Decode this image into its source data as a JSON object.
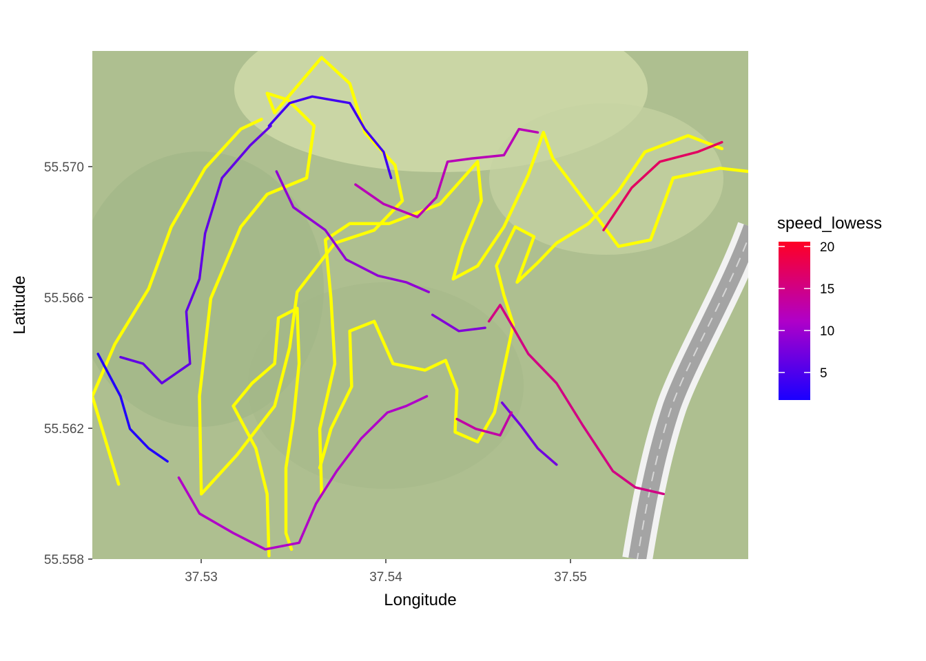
{
  "map": {
    "base_layer": "terrain-satellite-tiles",
    "features": [
      "green-parkland",
      "grey-highway-curve"
    ],
    "colors": {
      "land": "#a9bd8f",
      "land_light": "#ccd8a6",
      "road": "#a2a2a2",
      "road_edge": "#f0f0f0",
      "route_highlight": "#ffff00"
    }
  },
  "axes": {
    "xlabel": "Longitude",
    "ylabel": "Latitude",
    "x_ticks": [
      "37.53",
      "37.54",
      "37.55"
    ],
    "y_ticks": [
      "55.558",
      "55.562",
      "55.566",
      "55.570"
    ]
  },
  "legend": {
    "title": "speed_lowess",
    "labels": [
      "20",
      "15",
      "10",
      "5"
    ],
    "gradient_low": "#1a00ff",
    "gradient_mid": "#b000c8",
    "gradient_high": "#ff0024"
  },
  "chart_data": {
    "type": "scatter",
    "title": "",
    "xlabel": "Longitude",
    "ylabel": "Latitude",
    "xlim": [
      37.5243,
      37.5592
    ],
    "ylim": [
      55.558,
      55.5736
    ],
    "x_ticks": [
      37.53,
      37.54,
      37.55
    ],
    "y_ticks": [
      55.558,
      55.562,
      55.566,
      55.57
    ],
    "grid": false,
    "legend_position": "right",
    "color_scale": {
      "name": "speed_lowess",
      "min": 1.5,
      "max": 20.5,
      "ticks": [
        5,
        10,
        15,
        20
      ],
      "colors": [
        "#1a00ff",
        "#b000c8",
        "#ff0024"
      ]
    },
    "highlight_tracks": [
      {
        "color": "#ffff00",
        "points": [
          [
            37.534,
            55.5717
          ],
          [
            37.5365,
            55.5734
          ],
          [
            37.538,
            55.5726
          ],
          [
            37.5388,
            55.5711
          ],
          [
            37.5404,
            55.5701
          ],
          [
            37.5408,
            55.569
          ],
          [
            37.5393,
            55.5681
          ],
          [
            37.5372,
            55.5677
          ],
          [
            37.5352,
            55.5662
          ],
          [
            37.5348,
            55.5645
          ],
          [
            37.534,
            55.5627
          ],
          [
            37.532,
            55.5612
          ],
          [
            37.5301,
            55.56
          ],
          [
            37.53,
            55.563
          ],
          [
            37.5306,
            55.566
          ],
          [
            37.5322,
            55.5682
          ],
          [
            37.5336,
            55.5692
          ],
          [
            37.5357,
            55.5697
          ],
          [
            37.5361,
            55.5713
          ],
          [
            37.5347,
            55.5721
          ],
          [
            37.5336,
            55.5723
          ],
          [
            37.534,
            55.5717
          ]
        ]
      },
      {
        "color": "#ffff00",
        "points": [
          [
            37.5257,
            55.5603
          ],
          [
            37.5243,
            55.563
          ],
          [
            37.5255,
            55.5646
          ],
          [
            37.5273,
            55.5663
          ],
          [
            37.5285,
            55.5682
          ],
          [
            37.5303,
            55.57
          ],
          [
            37.5322,
            55.5712
          ],
          [
            37.5333,
            55.5715
          ]
        ]
      },
      {
        "color": "#ffff00",
        "points": [
          [
            37.5365,
            55.56
          ],
          [
            37.5364,
            55.562
          ],
          [
            37.5372,
            55.564
          ],
          [
            37.537,
            55.566
          ],
          [
            37.5367,
            55.5678
          ],
          [
            37.538,
            55.5683
          ],
          [
            37.5401,
            55.5683
          ],
          [
            37.5428,
            55.5689
          ],
          [
            37.5448,
            55.5702
          ],
          [
            37.545,
            55.569
          ],
          [
            37.544,
            55.5676
          ],
          [
            37.5435,
            55.5666
          ],
          [
            37.5448,
            55.567
          ],
          [
            37.5462,
            55.5682
          ],
          [
            37.5475,
            55.5698
          ],
          [
            37.5483,
            55.5711
          ],
          [
            37.5488,
            55.5703
          ],
          [
            37.5505,
            55.569
          ],
          [
            37.5523,
            55.5676
          ],
          [
            37.554,
            55.5678
          ],
          [
            37.5552,
            55.5697
          ],
          [
            37.5577,
            55.57
          ],
          [
            37.5592,
            55.5699
          ]
        ]
      },
      {
        "color": "#ffff00",
        "points": [
          [
            37.5337,
            55.5581
          ],
          [
            37.5336,
            55.56
          ],
          [
            37.533,
            55.5614
          ],
          [
            37.5318,
            55.5627
          ],
          [
            37.5328,
            55.5634
          ],
          [
            37.534,
            55.564
          ],
          [
            37.5342,
            55.5654
          ],
          [
            37.5352,
            55.5657
          ],
          [
            37.5353,
            55.564
          ],
          [
            37.535,
            55.5623
          ],
          [
            37.5346,
            55.5608
          ],
          [
            37.5346,
            55.5588
          ],
          [
            37.5349,
            55.5583
          ]
        ]
      },
      {
        "color": "#ffff00",
        "points": [
          [
            37.5364,
            55.5608
          ],
          [
            37.537,
            55.562
          ],
          [
            37.5381,
            55.5633
          ],
          [
            37.538,
            55.565
          ],
          [
            37.5393,
            55.5653
          ],
          [
            37.5403,
            55.564
          ],
          [
            37.542,
            55.5638
          ],
          [
            37.5431,
            55.5641
          ],
          [
            37.5437,
            55.5632
          ],
          [
            37.5436,
            55.5619
          ],
          [
            37.5448,
            55.5616
          ],
          [
            37.5457,
            55.5625
          ],
          [
            37.5467,
            55.5652
          ],
          [
            37.5462,
            55.5661
          ],
          [
            37.5458,
            55.567
          ],
          [
            37.5468,
            55.5682
          ],
          [
            37.5478,
            55.5679
          ],
          [
            37.5469,
            55.5665
          ],
          [
            37.548,
            55.5671
          ],
          [
            37.549,
            55.5677
          ],
          [
            37.5507,
            55.5683
          ],
          [
            37.5523,
            55.5693
          ],
          [
            37.5537,
            55.5705
          ],
          [
            37.556,
            55.571
          ],
          [
            37.5578,
            55.5706
          ]
        ]
      }
    ],
    "speed_tracks": [
      {
        "speed": 2,
        "points": [
          [
            37.5246,
            55.5643
          ],
          [
            37.5258,
            55.563
          ],
          [
            37.5263,
            55.562
          ],
          [
            37.5273,
            55.5614
          ],
          [
            37.5283,
            55.561
          ]
        ]
      },
      {
        "speed": 6,
        "points": [
          [
            37.5258,
            55.5642
          ],
          [
            37.527,
            55.564
          ],
          [
            37.528,
            55.5634
          ],
          [
            37.5295,
            55.564
          ],
          [
            37.5293,
            55.5656
          ],
          [
            37.53,
            55.5666
          ],
          [
            37.5303,
            55.568
          ],
          [
            37.5312,
            55.5697
          ],
          [
            37.5327,
            55.5707
          ],
          [
            37.5338,
            55.5713
          ]
        ]
      },
      {
        "speed": 11,
        "points": [
          [
            37.5289,
            55.5605
          ],
          [
            37.53,
            55.5594
          ],
          [
            37.5318,
            55.5588
          ],
          [
            37.5335,
            55.5583
          ],
          [
            37.5353,
            55.5585
          ],
          [
            37.5362,
            55.5597
          ],
          [
            37.5373,
            55.5607
          ],
          [
            37.5386,
            55.5617
          ],
          [
            37.54,
            55.5625
          ],
          [
            37.541,
            55.5627
          ],
          [
            37.5421,
            55.563
          ]
        ]
      },
      {
        "speed": 9,
        "points": [
          [
            37.5341,
            55.5699
          ],
          [
            37.535,
            55.5688
          ],
          [
            37.5367,
            55.5681
          ],
          [
            37.5378,
            55.5672
          ],
          [
            37.5395,
            55.5667
          ],
          [
            37.541,
            55.5665
          ],
          [
            37.5422,
            55.5662
          ]
        ]
      },
      {
        "speed": 4,
        "points": [
          [
            37.5337,
            55.5713
          ],
          [
            37.5348,
            55.572
          ],
          [
            37.536,
            55.5722
          ],
          [
            37.538,
            55.572
          ],
          [
            37.5388,
            55.5712
          ],
          [
            37.5398,
            55.5705
          ],
          [
            37.5402,
            55.5697
          ]
        ]
      },
      {
        "speed": 12,
        "points": [
          [
            37.5383,
            55.5695
          ],
          [
            37.5398,
            55.5689
          ],
          [
            37.5416,
            55.5685
          ],
          [
            37.5426,
            55.5691
          ],
          [
            37.5432,
            55.5702
          ],
          [
            37.5445,
            55.5703
          ],
          [
            37.5462,
            55.5704
          ],
          [
            37.547,
            55.5712
          ],
          [
            37.548,
            55.5711
          ]
        ]
      },
      {
        "speed": 15,
        "points": [
          [
            37.5454,
            55.5653
          ],
          [
            37.546,
            55.5658
          ],
          [
            37.5468,
            55.565
          ],
          [
            37.5475,
            55.5643
          ],
          [
            37.549,
            55.5634
          ],
          [
            37.5504,
            55.5621
          ],
          [
            37.552,
            55.5607
          ],
          [
            37.5532,
            55.5602
          ],
          [
            37.5547,
            55.56
          ]
        ]
      },
      {
        "speed": 8,
        "points": [
          [
            37.5424,
            55.5655
          ],
          [
            37.5438,
            55.565
          ],
          [
            37.5452,
            55.5651
          ]
        ]
      },
      {
        "speed": 7,
        "points": [
          [
            37.5461,
            55.5628
          ],
          [
            37.5471,
            55.5621
          ],
          [
            37.548,
            55.5614
          ],
          [
            37.549,
            55.5609
          ]
        ]
      },
      {
        "speed": 13,
        "points": [
          [
            37.5437,
            55.5623
          ],
          [
            37.5447,
            55.562
          ],
          [
            37.546,
            55.5618
          ],
          [
            37.5466,
            55.5625
          ]
        ]
      },
      {
        "speed": 17,
        "points": [
          [
            37.5515,
            55.5681
          ],
          [
            37.553,
            55.5694
          ],
          [
            37.5545,
            55.5702
          ],
          [
            37.5565,
            55.5705
          ],
          [
            37.5578,
            55.5708
          ]
        ]
      }
    ]
  }
}
